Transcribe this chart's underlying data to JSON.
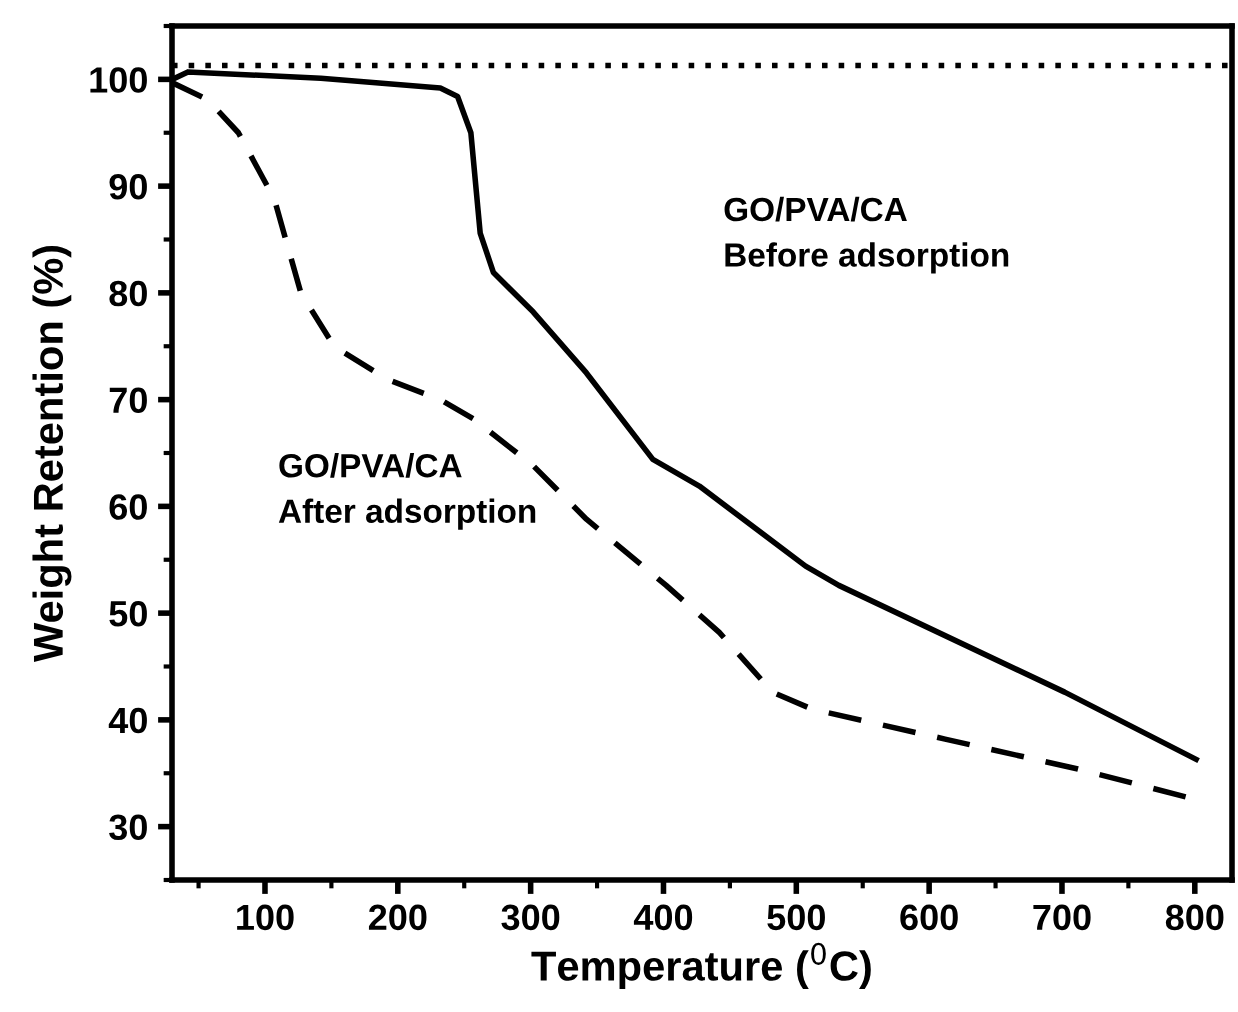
{
  "chart_data": {
    "type": "line",
    "xlabel": "Temperature ($^{0}$C)",
    "ylabel": "Weight Retention (%)",
    "xlim": [
      30,
      828
    ],
    "ylim": [
      25,
      105
    ],
    "xticks": [
      100,
      200,
      300,
      400,
      500,
      600,
      700,
      800
    ],
    "yticks": [
      30,
      40,
      50,
      60,
      70,
      80,
      90,
      100
    ],
    "annotations": [
      "GO/PVA/CA\nBefore adsorption",
      "GO/PVA/CA\nAfter adsorption"
    ],
    "grid": false,
    "legend": false,
    "marker": "none",
    "series": [
      {
        "color": "#000000",
        "line_style": "solid",
        "x": [
          32,
          42,
          142,
          232,
          245,
          255,
          262,
          272,
          302,
          342,
          392,
          427,
          507,
          532,
          702,
          801
        ],
        "values": [
          100.1,
          100.7,
          100.1,
          99.2,
          98.4,
          95,
          85.6,
          81.9,
          78.2,
          72.5,
          64.4,
          61.9,
          54.4,
          52.6,
          42.6,
          36.3
        ]
      },
      {
        "color": "#000000",
        "line_style": "dashed",
        "x": [
          30,
          57,
          80,
          107,
          127,
          152,
          192,
          232,
          257,
          302,
          342,
          402,
          442,
          482,
          512,
          612,
          712,
          799
        ],
        "values": [
          99.7,
          98.1,
          95,
          88.8,
          80,
          75,
          71.9,
          70,
          68.2,
          63.8,
          58.8,
          52.6,
          48.2,
          42.6,
          41.0,
          38.2,
          35.4,
          32.6
        ]
      }
    ],
    "ref_lines": [
      {
        "axis": "y",
        "value": 101.3,
        "label": null,
        "color": "#000000",
        "line_style": "dotted"
      }
    ]
  }
}
